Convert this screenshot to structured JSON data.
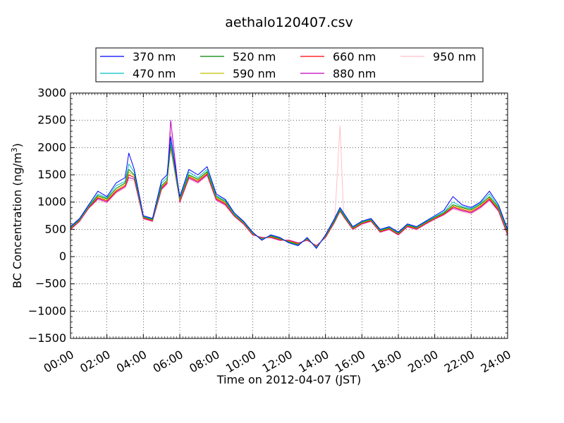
{
  "chart_data": {
    "type": "line",
    "title": "aethalo120407.csv",
    "xlabel": "Time on 2012-04-07 (JST)",
    "ylabel": "BC Concentration (ng/m",
    "ylabel_sup": "3",
    "ylabel_end": ")",
    "x_unit": "hours",
    "xlim": [
      0,
      24
    ],
    "ylim": [
      -1500,
      3000
    ],
    "grid": true,
    "legend_position": "top-center",
    "x_tick_labels": [
      "00:00",
      "02:00",
      "04:00",
      "06:00",
      "08:00",
      "10:00",
      "12:00",
      "14:00",
      "16:00",
      "18:00",
      "20:00",
      "22:00",
      "24:00"
    ],
    "y_tick_labels": [
      "−1500",
      "−1000",
      "−500",
      "0",
      "500",
      "1000",
      "1500",
      "2000",
      "2500",
      "3000"
    ],
    "x": [
      0,
      0.5,
      1,
      1.5,
      2,
      2.5,
      3,
      3.2,
      3.5,
      4,
      4.5,
      5,
      5.3,
      5.5,
      6,
      6.5,
      7,
      7.5,
      8,
      8.5,
      9,
      9.5,
      10,
      10.5,
      11,
      11.5,
      12,
      12.5,
      13,
      13.5,
      14,
      14.5,
      14.8,
      15,
      15.5,
      16,
      16.5,
      17,
      17.5,
      18,
      18.5,
      19,
      19.5,
      20,
      20.5,
      21,
      21.5,
      22,
      22.5,
      23,
      23.5,
      24
    ],
    "series": [
      {
        "name": "370 nm",
        "color": "#0000ff",
        "values": [
          550,
          700,
          950,
          1200,
          1100,
          1350,
          1450,
          1900,
          1600,
          750,
          700,
          1400,
          1500,
          2200,
          1100,
          1600,
          1500,
          1650,
          1150,
          1050,
          800,
          650,
          450,
          300,
          400,
          350,
          250,
          200,
          350,
          150,
          400,
          700,
          900,
          800,
          550,
          650,
          700,
          500,
          550,
          450,
          600,
          550,
          650,
          750,
          850,
          1100,
          950,
          900,
          1000,
          1200,
          950,
          500
        ]
      },
      {
        "name": "470 nm",
        "color": "#00bfbf",
        "values": [
          540,
          690,
          930,
          1150,
          1080,
          1300,
          1380,
          1700,
          1550,
          740,
          690,
          1350,
          1450,
          2100,
          1080,
          1550,
          1450,
          1600,
          1120,
          1030,
          780,
          640,
          440,
          310,
          390,
          340,
          260,
          210,
          340,
          160,
          390,
          680,
          880,
          780,
          540,
          640,
          690,
          490,
          540,
          440,
          590,
          540,
          640,
          730,
          820,
          1000,
          920,
          880,
          980,
          1150,
          920,
          480
        ]
      },
      {
        "name": "520 nm",
        "color": "#008000",
        "values": [
          530,
          680,
          920,
          1120,
          1060,
          1250,
          1350,
          1600,
          1500,
          730,
          680,
          1300,
          1400,
          2050,
          1060,
          1500,
          1420,
          1560,
          1100,
          1010,
          770,
          630,
          430,
          320,
          380,
          330,
          270,
          220,
          330,
          170,
          380,
          660,
          860,
          760,
          530,
          630,
          680,
          480,
          530,
          430,
          580,
          530,
          630,
          720,
          800,
          950,
          900,
          860,
          960,
          1100,
          900,
          460
        ]
      },
      {
        "name": "590 nm",
        "color": "#bfbf00",
        "values": [
          520,
          670,
          910,
          1100,
          1040,
          1220,
          1320,
          1550,
          1480,
          720,
          670,
          1280,
          1380,
          2020,
          1040,
          1480,
          1400,
          1540,
          1080,
          990,
          760,
          620,
          420,
          330,
          370,
          320,
          280,
          230,
          320,
          180,
          370,
          650,
          850,
          750,
          520,
          620,
          670,
          470,
          520,
          420,
          570,
          520,
          620,
          710,
          790,
          930,
          880,
          840,
          940,
          1080,
          880,
          440
        ]
      },
      {
        "name": "660 nm",
        "color": "#ff0000",
        "values": [
          510,
          660,
          900,
          1080,
          1020,
          1200,
          1300,
          1500,
          1450,
          710,
          660,
          1260,
          1360,
          2000,
          1020,
          1460,
          1380,
          1520,
          1060,
          970,
          750,
          610,
          410,
          340,
          360,
          310,
          290,
          240,
          310,
          190,
          360,
          640,
          840,
          740,
          510,
          610,
          660,
          460,
          510,
          410,
          560,
          510,
          610,
          700,
          780,
          910,
          860,
          820,
          920,
          1060,
          860,
          420
        ]
      },
      {
        "name": "880 nm",
        "color": "#bf00bf",
        "values": [
          500,
          650,
          890,
          1060,
          1000,
          1180,
          1280,
          1450,
          1420,
          700,
          650,
          1240,
          1340,
          2500,
          1000,
          1440,
          1360,
          1500,
          1040,
          950,
          740,
          600,
          400,
          350,
          350,
          300,
          300,
          250,
          300,
          200,
          350,
          630,
          830,
          730,
          500,
          600,
          650,
          450,
          500,
          400,
          550,
          500,
          600,
          690,
          770,
          890,
          840,
          800,
          900,
          1040,
          840,
          400
        ]
      },
      {
        "name": "950 nm",
        "color": "#ffc0cb",
        "values": [
          490,
          640,
          880,
          1040,
          980,
          1160,
          1260,
          1400,
          1400,
          690,
          640,
          1220,
          1320,
          2300,
          980,
          1420,
          1340,
          1480,
          1020,
          930,
          730,
          590,
          390,
          360,
          340,
          290,
          310,
          260,
          290,
          210,
          340,
          620,
          2400,
          720,
          490,
          590,
          640,
          440,
          490,
          390,
          540,
          490,
          590,
          680,
          760,
          870,
          820,
          780,
          880,
          1020,
          820,
          380
        ]
      }
    ]
  }
}
